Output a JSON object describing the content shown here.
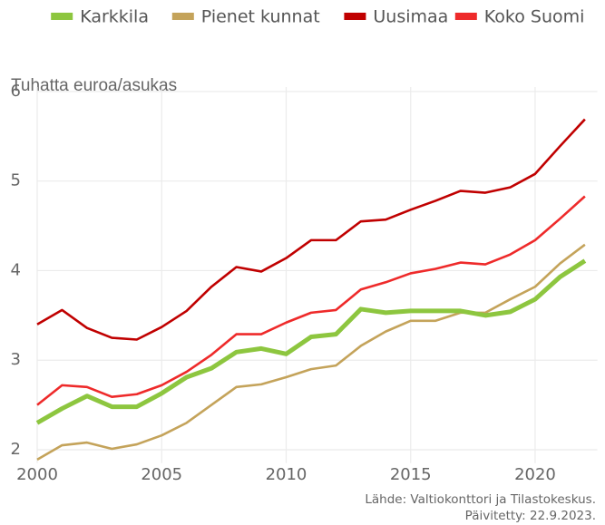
{
  "chart_data": {
    "type": "line",
    "y_label": "Tuhatta euroa/asukas",
    "source": "Lähde: Valtiokonttori ja Tilastokeskus.",
    "updated": "Päivitetty: 22.9.2023.",
    "x": [
      2000,
      2001,
      2002,
      2003,
      2004,
      2005,
      2006,
      2007,
      2008,
      2009,
      2010,
      2011,
      2012,
      2013,
      2014,
      2015,
      2016,
      2017,
      2018,
      2019,
      2020,
      2021,
      2022
    ],
    "series": [
      {
        "name": "Karkkila",
        "color": "#8dc63f",
        "values": [
          2.3,
          2.46,
          2.6,
          2.48,
          2.48,
          2.63,
          2.81,
          2.91,
          3.09,
          3.13,
          3.07,
          3.26,
          3.29,
          3.57,
          3.53,
          3.55,
          3.55,
          3.55,
          3.5,
          3.54,
          3.68,
          3.93,
          4.11
        ]
      },
      {
        "name": "Pienet kunnat",
        "color": "#c4a35a",
        "values": [
          1.89,
          2.05,
          2.08,
          2.01,
          2.06,
          2.16,
          2.3,
          2.5,
          2.7,
          2.73,
          2.81,
          2.9,
          2.94,
          3.16,
          3.32,
          3.44,
          3.44,
          3.53,
          3.53,
          3.68,
          3.82,
          4.08,
          4.29
        ]
      },
      {
        "name": "Uusimaa",
        "color": "#c00000",
        "values": [
          3.4,
          3.56,
          3.36,
          3.25,
          3.23,
          3.37,
          3.55,
          3.82,
          4.04,
          3.99,
          4.14,
          4.34,
          4.34,
          4.55,
          4.57,
          4.68,
          4.78,
          4.89,
          4.87,
          4.93,
          5.08,
          5.39,
          5.69
        ]
      },
      {
        "name": "Koko Suomi",
        "color": "#ee2a2a",
        "values": [
          2.5,
          2.72,
          2.7,
          2.59,
          2.62,
          2.72,
          2.87,
          3.06,
          3.29,
          3.29,
          3.42,
          3.53,
          3.56,
          3.79,
          3.87,
          3.97,
          4.02,
          4.09,
          4.07,
          4.18,
          4.34,
          4.58,
          4.83
        ]
      }
    ],
    "xlim": [
      2000,
      2022.5
    ],
    "xticks": [
      2000,
      2005,
      2010,
      2015,
      2020
    ],
    "ylim": [
      1.85,
      6.05
    ],
    "yticks": [
      2,
      3,
      4,
      5,
      6
    ],
    "grid": true,
    "legend": "top"
  }
}
